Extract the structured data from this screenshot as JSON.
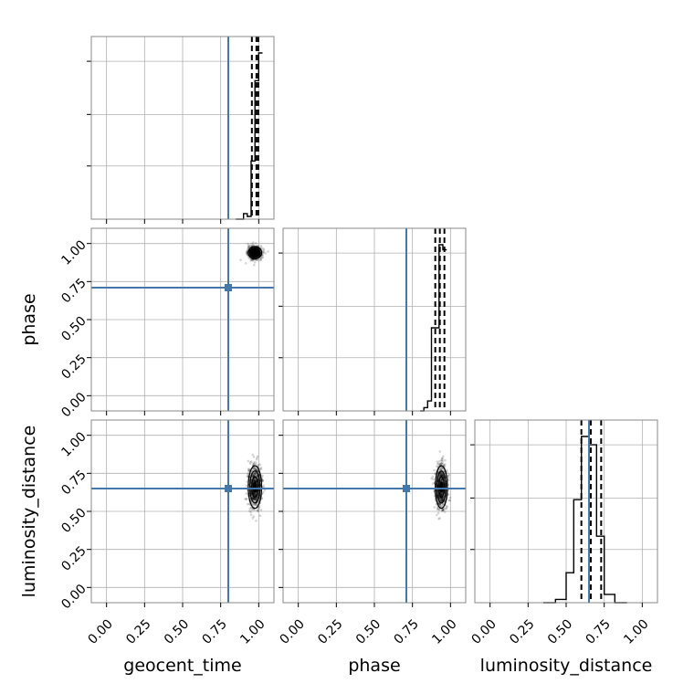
{
  "chart_data": {
    "type": "corner",
    "parameters": [
      "geocent_time",
      "phase",
      "luminosity_distance"
    ],
    "axis_labels": {
      "x": [
        "geocent_time",
        "phase",
        "luminosity_distance"
      ],
      "y": [
        "",
        "phase",
        "luminosity_distance"
      ]
    },
    "ticks": [
      0.0,
      0.25,
      0.5,
      0.75,
      1.0
    ],
    "tick_labels": [
      "0.00",
      "0.25",
      "0.50",
      "0.75",
      "1.00"
    ],
    "ranges": [
      [
        -0.1,
        1.1
      ],
      [
        -0.1,
        1.1
      ],
      [
        -0.1,
        1.1
      ]
    ],
    "grid": true,
    "truth_color": "#4477aa",
    "histogram_color": "#000000",
    "truths": {
      "geocent_time": 0.8,
      "phase": 0.71,
      "luminosity_distance": 0.65
    },
    "quantiles": {
      "geocent_time": [
        0.955,
        0.985,
        0.997
      ],
      "phase": [
        0.9,
        0.93,
        0.96
      ],
      "luminosity_distance": [
        0.6,
        0.662,
        0.73
      ]
    },
    "histograms": {
      "geocent_time": {
        "edges": [
          0.85,
          0.9,
          0.925,
          0.95,
          0.975,
          1.0,
          1.025
        ],
        "counts": [
          0,
          0.04,
          0.02,
          0.42,
          1.0,
          1.2
        ]
      },
      "phase": {
        "edges": [
          0.8,
          0.825,
          0.85,
          0.875,
          0.9,
          0.925,
          0.95,
          0.975
        ],
        "counts": [
          0,
          0.02,
          0.06,
          0.5,
          0.5,
          1.0,
          0.97
        ]
      },
      "luminosity_distance": {
        "edges": [
          0.35,
          0.43,
          0.5,
          0.55,
          0.6,
          0.65,
          0.7,
          0.75,
          0.82,
          0.9
        ],
        "counts": [
          0,
          0.02,
          0.18,
          0.62,
          1.0,
          0.95,
          0.4,
          0.05,
          0
        ]
      }
    },
    "samples": {
      "geocent_time": {
        "mean": 0.975,
        "sd": 0.022
      },
      "phase": {
        "mean": 0.94,
        "sd": 0.02
      },
      "luminosity_distance": {
        "mean": 0.66,
        "sd": 0.07
      }
    }
  }
}
